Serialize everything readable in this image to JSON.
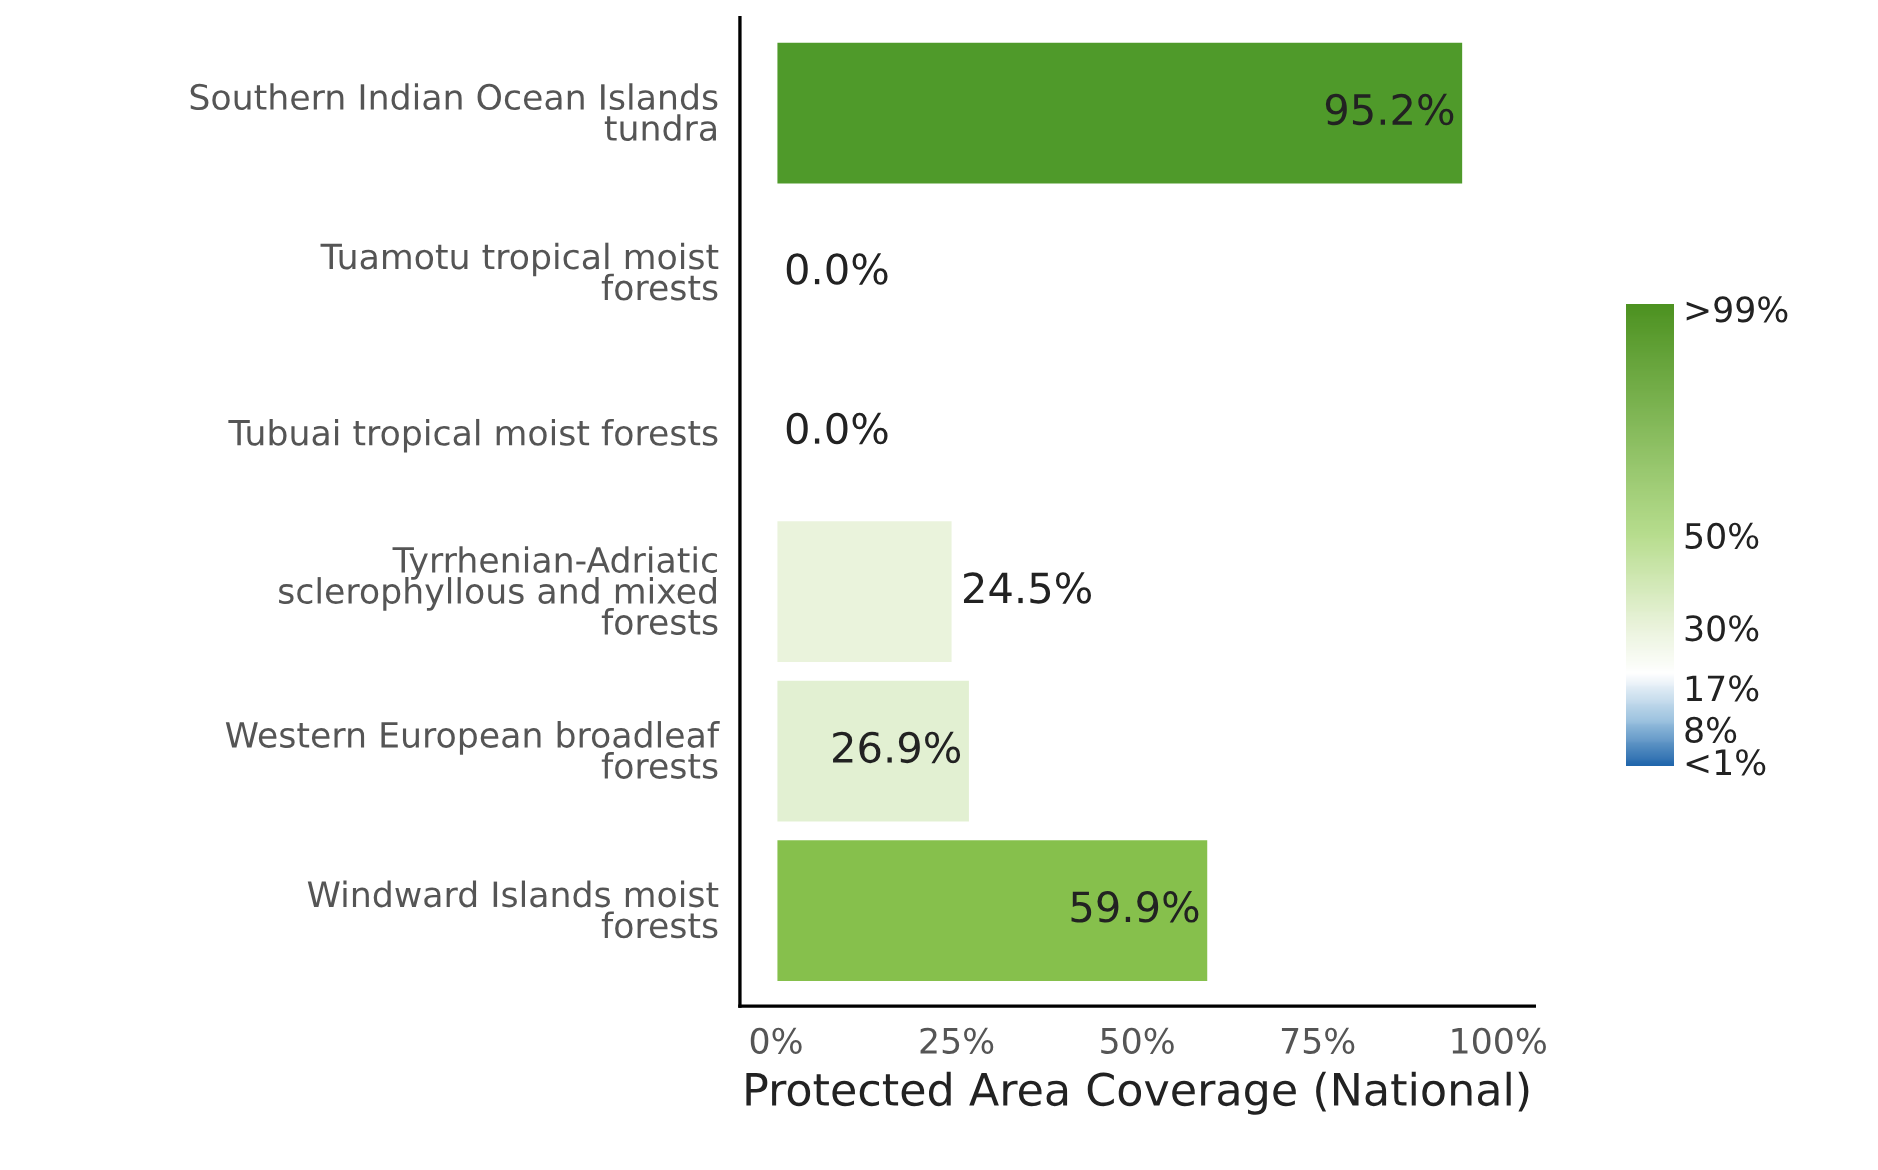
{
  "chart_data": {
    "type": "bar",
    "orientation": "horizontal",
    "xlabel": "Protected Area Coverage (National)",
    "categories": [
      "Southern Indian Ocean Islands\ntundra",
      "Tuamotu tropical moist\nforests",
      "Tubuai tropical moist forests",
      "Tyrrhenian-Adriatic\nsclerophyllous and mixed\nforests",
      "Western European broadleaf\nforests",
      "Windward Islands moist\nforests"
    ],
    "values": [
      95.2,
      0.0,
      0.0,
      24.5,
      26.9,
      59.9
    ],
    "value_labels": [
      "95.2%",
      "0.0%",
      "0.0%",
      "24.5%",
      "26.9%",
      "59.9%"
    ],
    "colors": [
      "#4f9a2a",
      null,
      null,
      "#eaf3dc",
      "#e2f0d2",
      "#86c04c"
    ],
    "xlim": [
      -5,
      105
    ],
    "xticks": [
      {
        "value": 0,
        "label": "0%"
      },
      {
        "value": 25,
        "label": "25%"
      },
      {
        "value": 50,
        "label": "50%"
      },
      {
        "value": 75,
        "label": "75%"
      },
      {
        "value": 100,
        "label": "100%"
      }
    ],
    "clim": [
      0,
      100
    ],
    "cticks": [
      {
        "value": 1,
        "label": "<1%"
      },
      {
        "value": 8,
        "label": "8%"
      },
      {
        "value": 17,
        "label": "17%"
      },
      {
        "value": 30,
        "label": "30%"
      },
      {
        "value": 50,
        "label": "50%"
      },
      {
        "value": 99,
        "label": ">99%"
      }
    ],
    "grid": false,
    "legend": false
  }
}
